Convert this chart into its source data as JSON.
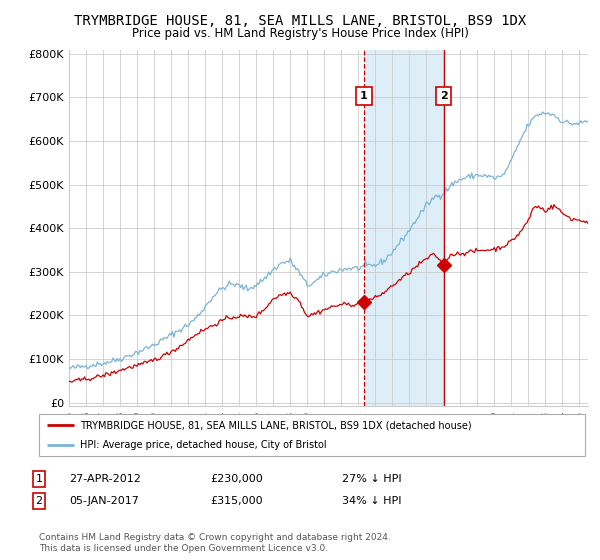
{
  "title": "TRYMBRIDGE HOUSE, 81, SEA MILLS LANE, BRISTOL, BS9 1DX",
  "subtitle": "Price paid vs. HM Land Registry's House Price Index (HPI)",
  "hpi_color": "#7ab4d8",
  "price_color": "#cc0000",
  "highlight_color": "#ddeef8",
  "marker1_date": 2012.33,
  "marker1_value": 230000,
  "marker1_label": "1",
  "marker1_text": "27-APR-2012",
  "marker1_price": "£230,000",
  "marker1_hpi": "27% ↓ HPI",
  "marker2_date": 2017.02,
  "marker2_value": 315000,
  "marker2_label": "2",
  "marker2_text": "05-JAN-2017",
  "marker2_price": "£315,000",
  "marker2_hpi": "34% ↓ HPI",
  "ylim_max": 800000,
  "xlim_start": 1995,
  "xlim_end": 2025.5,
  "yticks": [
    0,
    100000,
    200000,
    300000,
    400000,
    500000,
    600000,
    700000,
    800000
  ],
  "ytick_labels": [
    "£0",
    "£100K",
    "£200K",
    "£300K",
    "£400K",
    "£500K",
    "£600K",
    "£700K",
    "£800K"
  ],
  "legend_line1": "TRYMBRIDGE HOUSE, 81, SEA MILLS LANE, BRISTOL, BS9 1DX (detached house)",
  "legend_line2": "HPI: Average price, detached house, City of Bristol",
  "footer": "Contains HM Land Registry data © Crown copyright and database right 2024.\nThis data is licensed under the Open Government Licence v3.0."
}
